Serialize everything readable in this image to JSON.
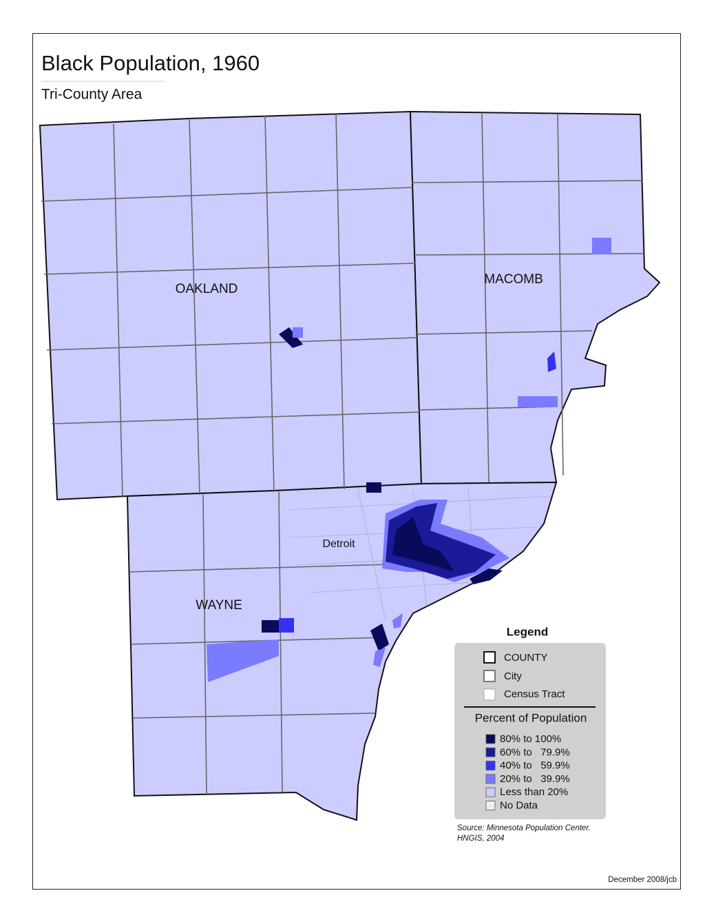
{
  "header": {
    "title": "Black Population, 1960",
    "subtitle": "Tri-County Area"
  },
  "map": {
    "labels": [
      "OAKLAND",
      "MACOMB",
      "WAYNE",
      "Detroit"
    ]
  },
  "legend": {
    "title": "Legend",
    "boundaries": [
      "COUNTY",
      "City",
      "Census Tract"
    ],
    "section_title": "Percent of Population",
    "classes": [
      {
        "label": "80% to 100%",
        "color": "#0a0a5a"
      },
      {
        "label": "60% to   79.9%",
        "color": "#1b1b9a"
      },
      {
        "label": "40% to   59.9%",
        "color": "#3333ee"
      },
      {
        "label": "20% to   39.9%",
        "color": "#7b7bff"
      },
      {
        "label": "Less than 20%",
        "color": "#ccccff"
      },
      {
        "label": "No Data",
        "color": "#eeeeee"
      }
    ]
  },
  "source": [
    "Source: Minnesota Population Center.",
    "HNGIS, 2004"
  ],
  "footer": "December 2008/jcb"
}
